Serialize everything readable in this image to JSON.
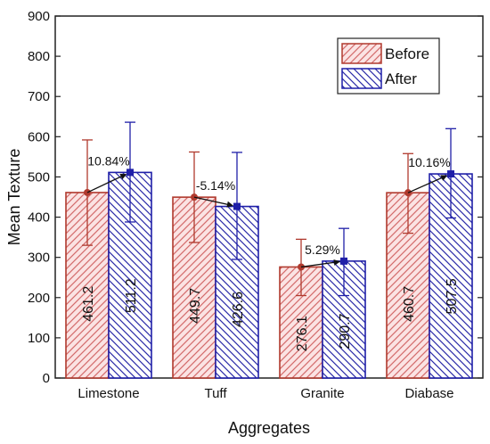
{
  "chart_data": {
    "type": "bar",
    "title": "",
    "xlabel": "Aggregates",
    "ylabel": "Mean Texture",
    "ylim": [
      0,
      900
    ],
    "yticks": [
      0,
      100,
      200,
      300,
      400,
      500,
      600,
      700,
      800,
      900
    ],
    "grid": false,
    "legend_position": "top-right",
    "categories": [
      "Limestone",
      "Tuff",
      "Granite",
      "Diabase"
    ],
    "series": [
      {
        "name": "Before",
        "values": [
          461.2,
          449.7,
          276.1,
          460.7
        ],
        "value_labels": [
          "461.2",
          "449.7",
          "276.1",
          "460.7"
        ],
        "error_low": [
          330,
          337,
          205,
          360
        ],
        "error_high": [
          592,
          562,
          345,
          558
        ],
        "color": "#c0392b"
      },
      {
        "name": "After",
        "values": [
          511.2,
          426.6,
          290.7,
          507.5
        ],
        "value_labels": [
          "511.2",
          "426.6",
          "290.7",
          "507.5"
        ],
        "error_low": [
          388,
          295,
          205,
          398
        ],
        "error_high": [
          636,
          561,
          372,
          620
        ],
        "color": "#1f1fa8"
      }
    ],
    "change_annotations": [
      "10.84%",
      "-5.14%",
      "5.29%",
      "10.16%"
    ]
  }
}
